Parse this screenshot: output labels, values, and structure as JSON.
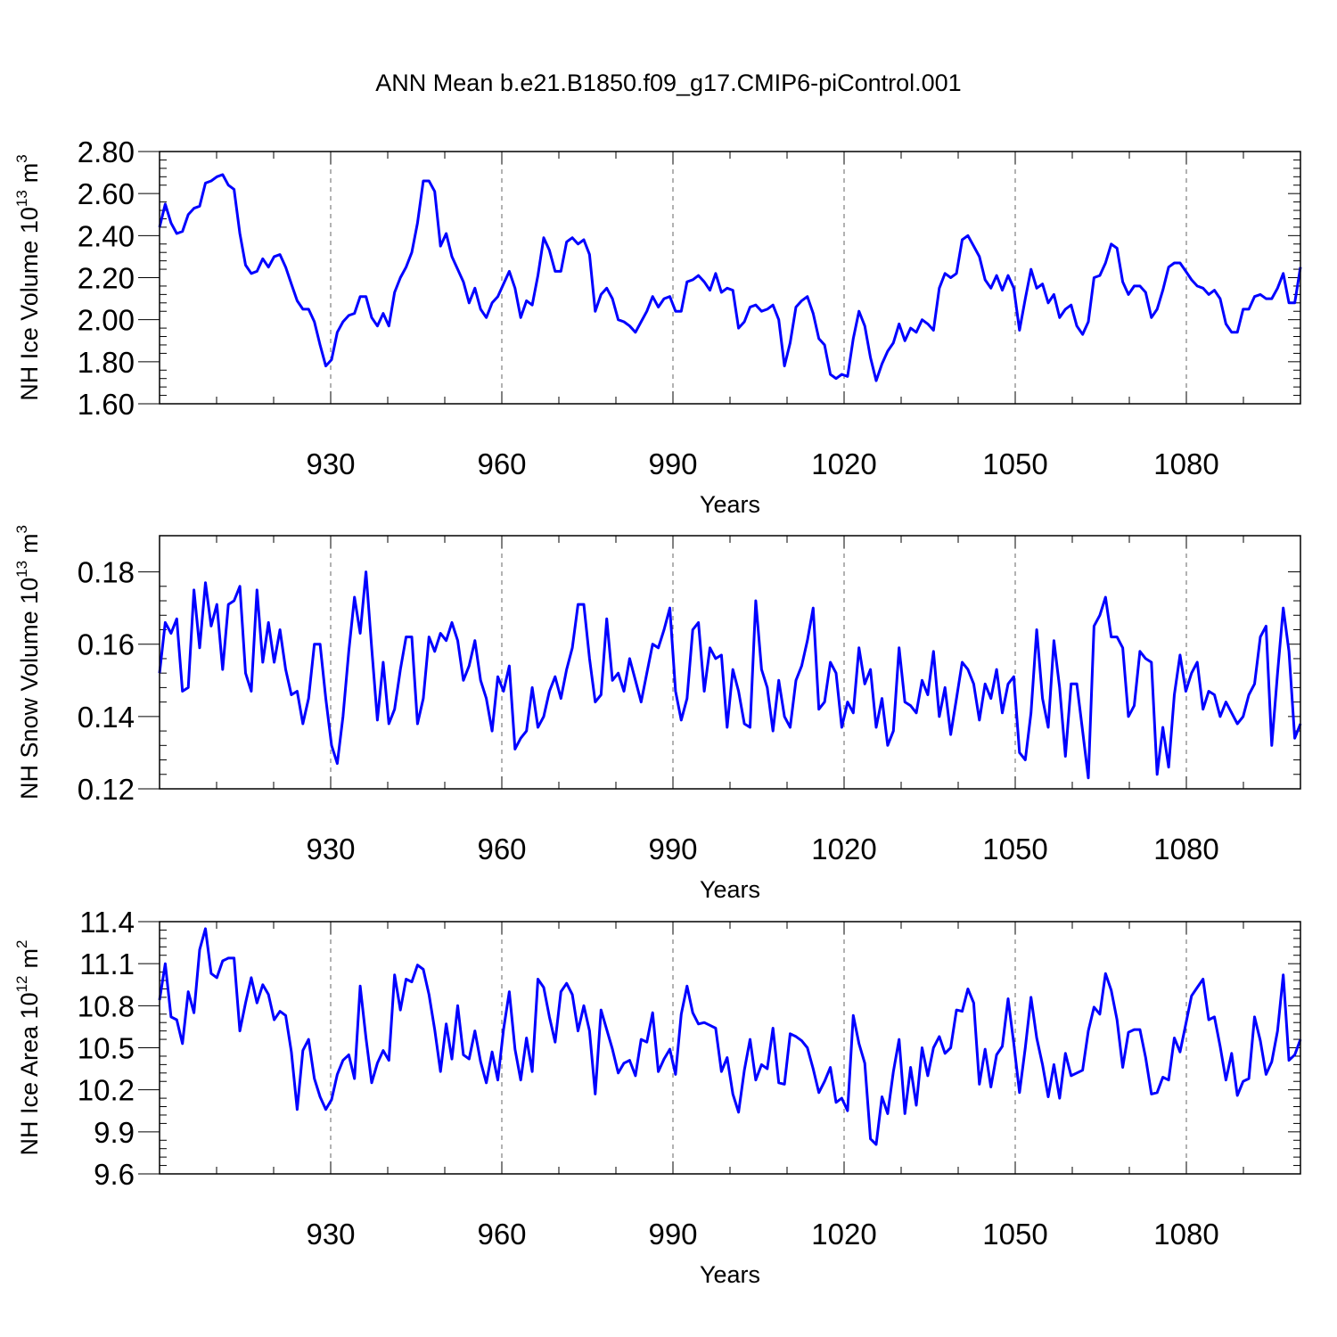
{
  "figure": {
    "title": "ANN Mean b.e21.B1850.f09_g17.CMIP6-piControl.001",
    "line_color": "#0000ff"
  },
  "chart_data": [
    {
      "type": "line",
      "title": "",
      "xlabel": "Years",
      "ylabel_text": "NH Ice Volume 10",
      "ylabel_sup": "13",
      "ylabel_unit": "m",
      "ylabel_unit_sup": "3",
      "x_start": 900,
      "x_end": 1100,
      "xlim": [
        900,
        1100
      ],
      "ylim": [
        1.6,
        2.8
      ],
      "xticks": [
        930,
        960,
        990,
        1020,
        1050,
        1080
      ],
      "xtick_labels": [
        "930",
        "960",
        "990",
        "1020",
        "1050",
        "1080"
      ],
      "yticks": [
        1.6,
        1.8,
        2.0,
        2.2,
        2.4,
        2.6,
        2.8
      ],
      "ytick_labels": [
        "1.60",
        "1.80",
        "2.00",
        "2.20",
        "2.40",
        "2.60",
        "2.80"
      ],
      "grid": "vertical-dashed",
      "series": [
        {
          "name": "NH Ice Volume",
          "values": [
            2.44,
            2.55,
            2.46,
            2.41,
            2.42,
            2.5,
            2.53,
            2.54,
            2.65,
            2.66,
            2.68,
            2.69,
            2.64,
            2.62,
            2.41,
            2.26,
            2.22,
            2.23,
            2.29,
            2.25,
            2.3,
            2.31,
            2.25,
            2.17,
            2.09,
            2.05,
            2.05,
            1.99,
            1.88,
            1.78,
            1.81,
            1.94,
            1.99,
            2.02,
            2.03,
            2.11,
            2.11,
            2.01,
            1.97,
            2.03,
            1.97,
            2.13,
            2.2,
            2.25,
            2.32,
            2.46,
            2.66,
            2.66,
            2.61,
            2.35,
            2.41,
            2.3,
            2.24,
            2.18,
            2.08,
            2.15,
            2.05,
            2.01,
            2.08,
            2.11,
            2.17,
            2.23,
            2.15,
            2.01,
            2.09,
            2.07,
            2.21,
            2.39,
            2.33,
            2.23,
            2.23,
            2.37,
            2.39,
            2.36,
            2.38,
            2.31,
            2.04,
            2.12,
            2.15,
            2.1,
            2.0,
            1.99,
            1.97,
            1.94,
            1.99,
            2.04,
            2.11,
            2.06,
            2.1,
            2.11,
            2.04,
            2.04,
            2.18,
            2.19,
            2.21,
            2.18,
            2.14,
            2.22,
            2.13,
            2.15,
            2.14,
            1.96,
            1.99,
            2.06,
            2.07,
            2.04,
            2.05,
            2.07,
            2.0,
            1.78,
            1.89,
            2.06,
            2.09,
            2.11,
            2.03,
            1.91,
            1.88,
            1.74,
            1.72,
            1.74,
            1.73,
            1.91,
            2.04,
            1.97,
            1.82,
            1.71,
            1.79,
            1.85,
            1.89,
            1.98,
            1.9,
            1.96,
            1.94,
            2.0,
            1.98,
            1.95,
            2.15,
            2.22,
            2.2,
            2.22,
            2.38,
            2.4,
            2.35,
            2.3,
            2.19,
            2.15,
            2.21,
            2.14,
            2.21,
            2.15,
            1.95,
            2.1,
            2.24,
            2.15,
            2.17,
            2.08,
            2.12,
            2.01,
            2.05,
            2.07,
            1.97,
            1.93,
            1.99,
            2.2,
            2.21,
            2.27,
            2.36,
            2.34,
            2.18,
            2.12,
            2.16,
            2.16,
            2.13,
            2.01,
            2.05,
            2.14,
            2.25,
            2.27,
            2.27,
            2.23,
            2.19,
            2.16,
            2.15,
            2.12,
            2.14,
            2.1,
            1.98,
            1.94,
            1.94,
            2.05,
            2.05,
            2.11,
            2.12,
            2.1,
            2.1,
            2.15,
            2.22,
            2.08,
            2.08,
            2.25
          ]
        }
      ]
    },
    {
      "type": "line",
      "title": "",
      "xlabel": "Years",
      "ylabel_text": "NH Snow Volume 10",
      "ylabel_sup": "13",
      "ylabel_unit": "m",
      "ylabel_unit_sup": "3",
      "x_start": 900,
      "x_end": 1100,
      "xlim": [
        900,
        1100
      ],
      "ylim": [
        0.12,
        0.19
      ],
      "xticks": [
        930,
        960,
        990,
        1020,
        1050,
        1080
      ],
      "xtick_labels": [
        "930",
        "960",
        "990",
        "1020",
        "1050",
        "1080"
      ],
      "yticks": [
        0.12,
        0.14,
        0.16,
        0.18
      ],
      "ytick_labels": [
        "0.12",
        "0.14",
        "0.16",
        "0.18"
      ],
      "grid": "vertical-dashed",
      "series": [
        {
          "name": "NH Snow Volume",
          "values": [
            0.152,
            0.166,
            0.163,
            0.167,
            0.147,
            0.148,
            0.175,
            0.159,
            0.177,
            0.165,
            0.171,
            0.153,
            0.171,
            0.172,
            0.176,
            0.152,
            0.147,
            0.175,
            0.155,
            0.166,
            0.155,
            0.164,
            0.153,
            0.146,
            0.147,
            0.138,
            0.145,
            0.16,
            0.16,
            0.145,
            0.132,
            0.127,
            0.14,
            0.158,
            0.173,
            0.163,
            0.18,
            0.159,
            0.139,
            0.155,
            0.138,
            0.142,
            0.153,
            0.162,
            0.162,
            0.138,
            0.145,
            0.162,
            0.158,
            0.163,
            0.161,
            0.166,
            0.161,
            0.15,
            0.154,
            0.161,
            0.15,
            0.145,
            0.136,
            0.151,
            0.147,
            0.154,
            0.131,
            0.134,
            0.136,
            0.148,
            0.137,
            0.14,
            0.147,
            0.151,
            0.145,
            0.153,
            0.159,
            0.171,
            0.171,
            0.156,
            0.144,
            0.146,
            0.167,
            0.15,
            0.152,
            0.147,
            0.156,
            0.15,
            0.144,
            0.152,
            0.16,
            0.159,
            0.164,
            0.17,
            0.147,
            0.139,
            0.145,
            0.164,
            0.166,
            0.147,
            0.159,
            0.156,
            0.157,
            0.137,
            0.153,
            0.147,
            0.138,
            0.137,
            0.172,
            0.153,
            0.148,
            0.136,
            0.15,
            0.14,
            0.137,
            0.15,
            0.154,
            0.161,
            0.17,
            0.142,
            0.144,
            0.155,
            0.152,
            0.137,
            0.144,
            0.141,
            0.159,
            0.149,
            0.153,
            0.137,
            0.145,
            0.132,
            0.136,
            0.159,
            0.144,
            0.143,
            0.141,
            0.15,
            0.146,
            0.158,
            0.14,
            0.148,
            0.135,
            0.145,
            0.155,
            0.153,
            0.149,
            0.139,
            0.149,
            0.145,
            0.153,
            0.141,
            0.149,
            0.151,
            0.13,
            0.128,
            0.141,
            0.164,
            0.145,
            0.137,
            0.161,
            0.148,
            0.129,
            0.149,
            0.149,
            0.136,
            0.123,
            0.165,
            0.168,
            0.173,
            0.162,
            0.162,
            0.159,
            0.14,
            0.143,
            0.158,
            0.156,
            0.155,
            0.124,
            0.137,
            0.126,
            0.146,
            0.157,
            0.147,
            0.152,
            0.155,
            0.142,
            0.147,
            0.146,
            0.14,
            0.144,
            0.141,
            0.138,
            0.14,
            0.146,
            0.149,
            0.162,
            0.165,
            0.132,
            0.152,
            0.17,
            0.158,
            0.134,
            0.138
          ]
        }
      ]
    },
    {
      "type": "line",
      "title": "",
      "xlabel": "Years",
      "ylabel_text": "NH Ice Area 10",
      "ylabel_sup": "12",
      "ylabel_unit": "m",
      "ylabel_unit_sup": "2",
      "x_start": 900,
      "x_end": 1100,
      "xlim": [
        900,
        1100
      ],
      "ylim": [
        9.6,
        11.4
      ],
      "xticks": [
        930,
        960,
        990,
        1020,
        1050,
        1080
      ],
      "xtick_labels": [
        "930",
        "960",
        "990",
        "1020",
        "1050",
        "1080"
      ],
      "yticks": [
        9.6,
        9.9,
        10.2,
        10.5,
        10.8,
        11.1,
        11.4
      ],
      "ytick_labels": [
        "9.6",
        "9.9",
        "10.2",
        "10.5",
        "10.8",
        "11.1",
        "11.4"
      ],
      "grid": "vertical-dashed",
      "series": [
        {
          "name": "NH Ice Area",
          "values": [
            10.84,
            11.1,
            10.72,
            10.7,
            10.53,
            10.9,
            10.75,
            11.2,
            11.35,
            11.03,
            11.0,
            11.12,
            11.14,
            11.14,
            10.62,
            10.82,
            11.0,
            10.82,
            10.95,
            10.88,
            10.7,
            10.76,
            10.73,
            10.47,
            10.06,
            10.48,
            10.56,
            10.28,
            10.15,
            10.06,
            10.13,
            10.31,
            10.41,
            10.45,
            10.28,
            10.94,
            10.57,
            10.25,
            10.39,
            10.48,
            10.41,
            11.02,
            10.77,
            10.99,
            10.97,
            11.09,
            11.06,
            10.88,
            10.63,
            10.33,
            10.67,
            10.42,
            10.8,
            10.45,
            10.42,
            10.62,
            10.4,
            10.25,
            10.47,
            10.27,
            10.63,
            10.9,
            10.49,
            10.27,
            10.57,
            10.33,
            10.99,
            10.93,
            10.72,
            10.54,
            10.9,
            10.96,
            10.88,
            10.62,
            10.8,
            10.62,
            10.17,
            10.77,
            10.63,
            10.49,
            10.32,
            10.39,
            10.41,
            10.3,
            10.56,
            10.54,
            10.75,
            10.33,
            10.42,
            10.49,
            10.31,
            10.74,
            10.94,
            10.75,
            10.67,
            10.68,
            10.66,
            10.64,
            10.33,
            10.43,
            10.17,
            10.04,
            10.34,
            10.56,
            10.27,
            10.38,
            10.35,
            10.64,
            10.25,
            10.24,
            10.6,
            10.58,
            10.55,
            10.5,
            10.35,
            10.18,
            10.26,
            10.36,
            10.11,
            10.14,
            10.05,
            10.73,
            10.53,
            10.39,
            9.85,
            9.81,
            10.15,
            10.03,
            10.33,
            10.56,
            10.03,
            10.36,
            10.09,
            10.5,
            10.3,
            10.5,
            10.58,
            10.46,
            10.5,
            10.77,
            10.76,
            10.92,
            10.82,
            10.24,
            10.49,
            10.22,
            10.45,
            10.51,
            10.85,
            10.53,
            10.18,
            10.5,
            10.86,
            10.57,
            10.38,
            10.15,
            10.38,
            10.14,
            10.46,
            10.3,
            10.32,
            10.34,
            10.62,
            10.79,
            10.74,
            11.03,
            10.91,
            10.7,
            10.36,
            10.61,
            10.63,
            10.63,
            10.43,
            10.17,
            10.18,
            10.29,
            10.27,
            10.57,
            10.47,
            10.67,
            10.87,
            10.93,
            10.99,
            10.7,
            10.72,
            10.51,
            10.27,
            10.46,
            10.16,
            10.26,
            10.28,
            10.72,
            10.55,
            10.31,
            10.4,
            10.62,
            11.02,
            10.41,
            10.45,
            10.56
          ]
        }
      ]
    }
  ]
}
